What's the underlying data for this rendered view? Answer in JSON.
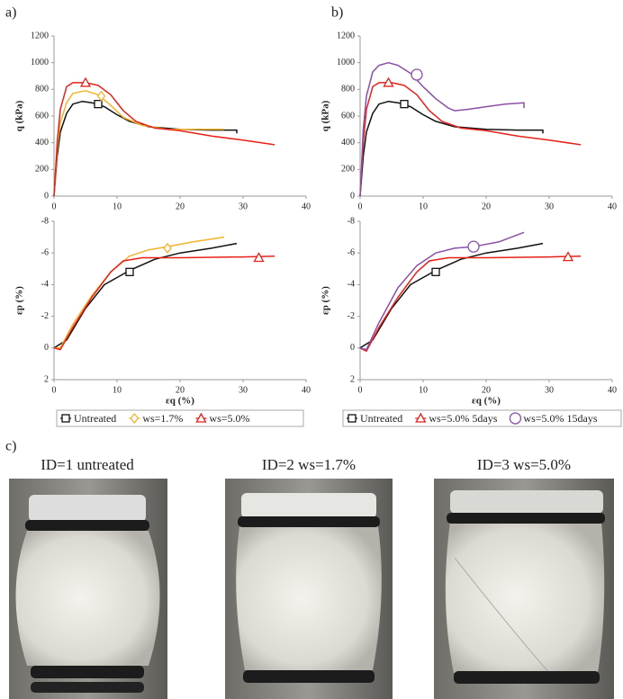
{
  "chart_data": [
    {
      "type": "line",
      "panel_label": "a)",
      "y_label": "q (kPa)",
      "xlim": [
        0,
        40
      ],
      "xticks": [
        0,
        10,
        20,
        30,
        40
      ],
      "ylim": [
        0,
        1200
      ],
      "yticks": [
        0,
        200,
        400,
        600,
        800,
        1000,
        1200
      ],
      "series": [
        {
          "color": "#111111",
          "marker": {
            "shape": "square",
            "x": 7,
            "y": 690
          },
          "x": [
            0,
            0.5,
            1,
            2,
            3,
            4.5,
            6,
            8,
            10,
            12,
            15,
            20,
            25,
            29,
            29
          ],
          "values": [
            0,
            300,
            480,
            620,
            690,
            710,
            700,
            670,
            610,
            560,
            520,
            500,
            495,
            495,
            470
          ]
        },
        {
          "color": "#f2b22c",
          "marker": {
            "shape": "diamond",
            "x": 7.5,
            "y": 750
          },
          "x": [
            0,
            0.5,
            1,
            2,
            3,
            5,
            7,
            9,
            11,
            14,
            18,
            22,
            27
          ],
          "values": [
            0,
            350,
            550,
            700,
            770,
            790,
            760,
            680,
            590,
            530,
            500,
            500,
            500
          ]
        },
        {
          "color": "#e62119",
          "marker": {
            "shape": "triangle",
            "x": 5,
            "y": 850
          },
          "x": [
            0,
            0.5,
            1,
            2,
            3,
            5,
            7,
            9,
            11,
            13,
            16,
            20,
            25,
            30,
            35
          ],
          "values": [
            0,
            400,
            650,
            820,
            850,
            850,
            830,
            760,
            640,
            560,
            510,
            490,
            450,
            420,
            385
          ]
        }
      ]
    },
    {
      "type": "line",
      "x_label": "εq (%)",
      "y_label": "εp (%)",
      "xlim": [
        0,
        40
      ],
      "xticks": [
        0,
        10,
        20,
        30,
        40
      ],
      "ylim": [
        2,
        -8
      ],
      "yticks": [
        -8,
        -6,
        -4,
        -2,
        0,
        2
      ],
      "series": [
        {
          "name": "Untreated",
          "color": "#111111",
          "marker": {
            "shape": "square",
            "x": 12,
            "y": -4.8
          },
          "x": [
            0,
            2,
            5,
            8,
            12,
            16,
            20,
            25,
            29
          ],
          "values": [
            0,
            -0.5,
            -2.5,
            -4,
            -4.9,
            -5.6,
            -6,
            -6.3,
            -6.6
          ]
        },
        {
          "name": "ws=1.7%",
          "color": "#f2b22c",
          "marker": {
            "shape": "diamond",
            "x": 18,
            "y": -6.3
          },
          "x": [
            0,
            1,
            3,
            6,
            9,
            12,
            15,
            18,
            22,
            27
          ],
          "values": [
            0,
            0,
            -1.5,
            -3.3,
            -4.8,
            -5.8,
            -6.2,
            -6.4,
            -6.7,
            -7
          ]
        },
        {
          "name": "ws=5.0%",
          "color": "#e62119",
          "marker": {
            "shape": "triangle",
            "x": 32.5,
            "y": -5.7
          },
          "x": [
            0,
            1,
            3,
            6,
            9,
            11,
            14,
            20,
            30,
            35
          ],
          "values": [
            0,
            0.1,
            -1.3,
            -3.2,
            -4.8,
            -5.5,
            -5.7,
            -5.7,
            -5.75,
            -5.8
          ]
        }
      ]
    },
    {
      "type": "line",
      "panel_label": "b)",
      "y_label": "q (kPa)",
      "xlim": [
        0,
        40
      ],
      "xticks": [
        0,
        10,
        20,
        30,
        40
      ],
      "ylim": [
        0,
        1200
      ],
      "yticks": [
        0,
        200,
        400,
        600,
        800,
        1000,
        1200
      ],
      "series": [
        {
          "color": "#111111",
          "marker": {
            "shape": "square",
            "x": 7,
            "y": 690
          },
          "x": [
            0,
            0.5,
            1,
            2,
            3,
            4.5,
            6,
            8,
            10,
            12,
            15,
            20,
            25,
            29,
            29
          ],
          "values": [
            0,
            300,
            480,
            620,
            690,
            710,
            700,
            670,
            610,
            560,
            520,
            500,
            495,
            495,
            470
          ]
        },
        {
          "color": "#e62119",
          "marker": {
            "shape": "triangle",
            "x": 4.5,
            "y": 850
          },
          "x": [
            0,
            0.5,
            1,
            2,
            3,
            5,
            7,
            9,
            11,
            13,
            16,
            20,
            25,
            30,
            35
          ],
          "values": [
            0,
            400,
            650,
            820,
            850,
            850,
            830,
            760,
            640,
            560,
            510,
            490,
            450,
            420,
            385
          ]
        },
        {
          "color": "#8a4fa6",
          "marker": {
            "shape": "circle",
            "x": 9,
            "y": 910
          },
          "x": [
            0,
            0.5,
            1,
            2,
            3,
            4.5,
            6,
            8,
            10,
            12,
            14,
            15,
            17,
            20,
            23,
            26,
            26
          ],
          "values": [
            0,
            500,
            750,
            930,
            980,
            1000,
            980,
            920,
            820,
            730,
            660,
            640,
            650,
            670,
            690,
            700,
            660
          ]
        }
      ]
    },
    {
      "type": "line",
      "x_label": "εq (%)",
      "y_label": "εp (%)",
      "xlim": [
        0,
        40
      ],
      "xticks": [
        0,
        10,
        20,
        30,
        40
      ],
      "ylim": [
        2,
        -8
      ],
      "yticks": [
        -8,
        -6,
        -4,
        -2,
        0,
        2
      ],
      "series": [
        {
          "name": "Untreated",
          "color": "#111111",
          "marker": {
            "shape": "square",
            "x": 12,
            "y": -4.8
          },
          "x": [
            0,
            2,
            5,
            8,
            12,
            16,
            20,
            25,
            29
          ],
          "values": [
            0,
            -0.5,
            -2.5,
            -4,
            -4.9,
            -5.6,
            -6,
            -6.3,
            -6.6
          ]
        },
        {
          "name": "ws=5.0% 5days",
          "color": "#e62119",
          "marker": {
            "shape": "triangle",
            "x": 33,
            "y": -5.75
          },
          "x": [
            0,
            1,
            3,
            6,
            9,
            11,
            14,
            20,
            30,
            35
          ],
          "values": [
            0,
            0.2,
            -1.3,
            -3.2,
            -4.8,
            -5.5,
            -5.7,
            -5.7,
            -5.75,
            -5.8
          ]
        },
        {
          "name": "ws=5.0% 15days",
          "color": "#8a4fa6",
          "marker": {
            "shape": "circle",
            "x": 18,
            "y": -6.4
          },
          "x": [
            0,
            1,
            3,
            6,
            9,
            12,
            15,
            18,
            22,
            26
          ],
          "values": [
            0,
            0.1,
            -1.6,
            -3.8,
            -5.2,
            -6,
            -6.3,
            -6.4,
            -6.7,
            -7.3
          ]
        }
      ]
    }
  ],
  "photos": {
    "label": "c)",
    "items": [
      {
        "title": "ID=1 untreated"
      },
      {
        "title": "ID=2 ws=1.7%"
      },
      {
        "title": "ID=3 ws=5.0%"
      }
    ]
  }
}
